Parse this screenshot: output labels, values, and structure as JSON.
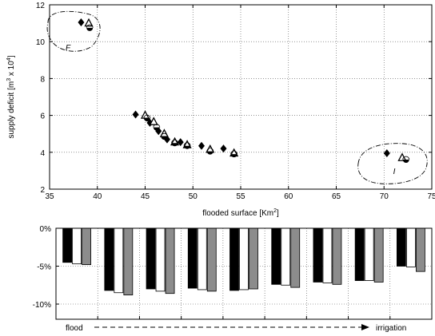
{
  "chart_data": [
    {
      "type": "scatter",
      "xlabel": "flooded surface [Km",
      "xlabel_sup": "2",
      "xlabel_end": "]",
      "ylabel": "supply deficit [m",
      "ylabel_sup1": "3",
      "ylabel_mid": " x 10",
      "ylabel_sup2": "4",
      "ylabel_end": "]",
      "xlim": [
        35,
        75
      ],
      "ylim": [
        2,
        12
      ],
      "xticks": [
        "35",
        "40",
        "45",
        "50",
        "55",
        "60",
        "65",
        "70",
        "75"
      ],
      "yticks": [
        "2",
        "4",
        "6",
        "8",
        "10",
        "12"
      ],
      "grid": true,
      "series": [
        {
          "marker": "diamond-filled",
          "points": [
            [
              38.3,
              11.05
            ],
            [
              44.0,
              6.05
            ],
            [
              45.5,
              5.6
            ],
            [
              46.4,
              5.15
            ],
            [
              47.3,
              4.7
            ],
            [
              48.7,
              4.55
            ],
            [
              50.9,
              4.35
            ],
            [
              53.2,
              4.2
            ],
            [
              70.3,
              3.95
            ]
          ]
        },
        {
          "marker": "triangle-open",
          "points": [
            [
              39.1,
              11.0
            ],
            [
              45.0,
              6.0
            ],
            [
              45.9,
              5.65
            ],
            [
              47.0,
              5.0
            ],
            [
              48.1,
              4.55
            ],
            [
              49.4,
              4.4
            ],
            [
              51.8,
              4.15
            ],
            [
              54.3,
              3.95
            ],
            [
              71.9,
              3.7
            ]
          ]
        },
        {
          "marker": "half-circle",
          "points": [
            [
              39.2,
              10.75
            ],
            [
              45.2,
              5.85
            ],
            [
              46.2,
              5.35
            ],
            [
              47.0,
              4.85
            ],
            [
              48.1,
              4.5
            ],
            [
              49.4,
              4.35
            ],
            [
              51.8,
              4.05
            ],
            [
              54.3,
              3.9
            ],
            [
              72.3,
              3.6
            ]
          ]
        }
      ],
      "annotations": [
        {
          "label": "F"
        },
        {
          "label": "I"
        }
      ]
    },
    {
      "type": "bar",
      "groups": 9,
      "series": [
        {
          "color": "#000000",
          "values": [
            -4.5,
            -8.2,
            -8.0,
            -7.9,
            -8.2,
            -7.4,
            -7.1,
            -6.9,
            -5.0
          ]
        },
        {
          "color": "#ffffff",
          "values": [
            -4.7,
            -8.5,
            -8.3,
            -8.1,
            -8.1,
            -7.5,
            -7.2,
            -6.9,
            -5.1
          ]
        },
        {
          "color": "#8c8c8c",
          "values": [
            -4.8,
            -8.8,
            -8.6,
            -8.3,
            -8.0,
            -7.8,
            -7.4,
            -7.1,
            -5.7
          ]
        }
      ],
      "ylim": [
        -12,
        0
      ],
      "yticks": [
        {
          "v": 0,
          "label": "0%"
        },
        {
          "v": -5,
          "label": "-5%"
        },
        {
          "v": -10,
          "label": "-10%"
        }
      ],
      "grid": true,
      "xlabel_left": "flood",
      "xlabel_right": "irrigation"
    }
  ]
}
